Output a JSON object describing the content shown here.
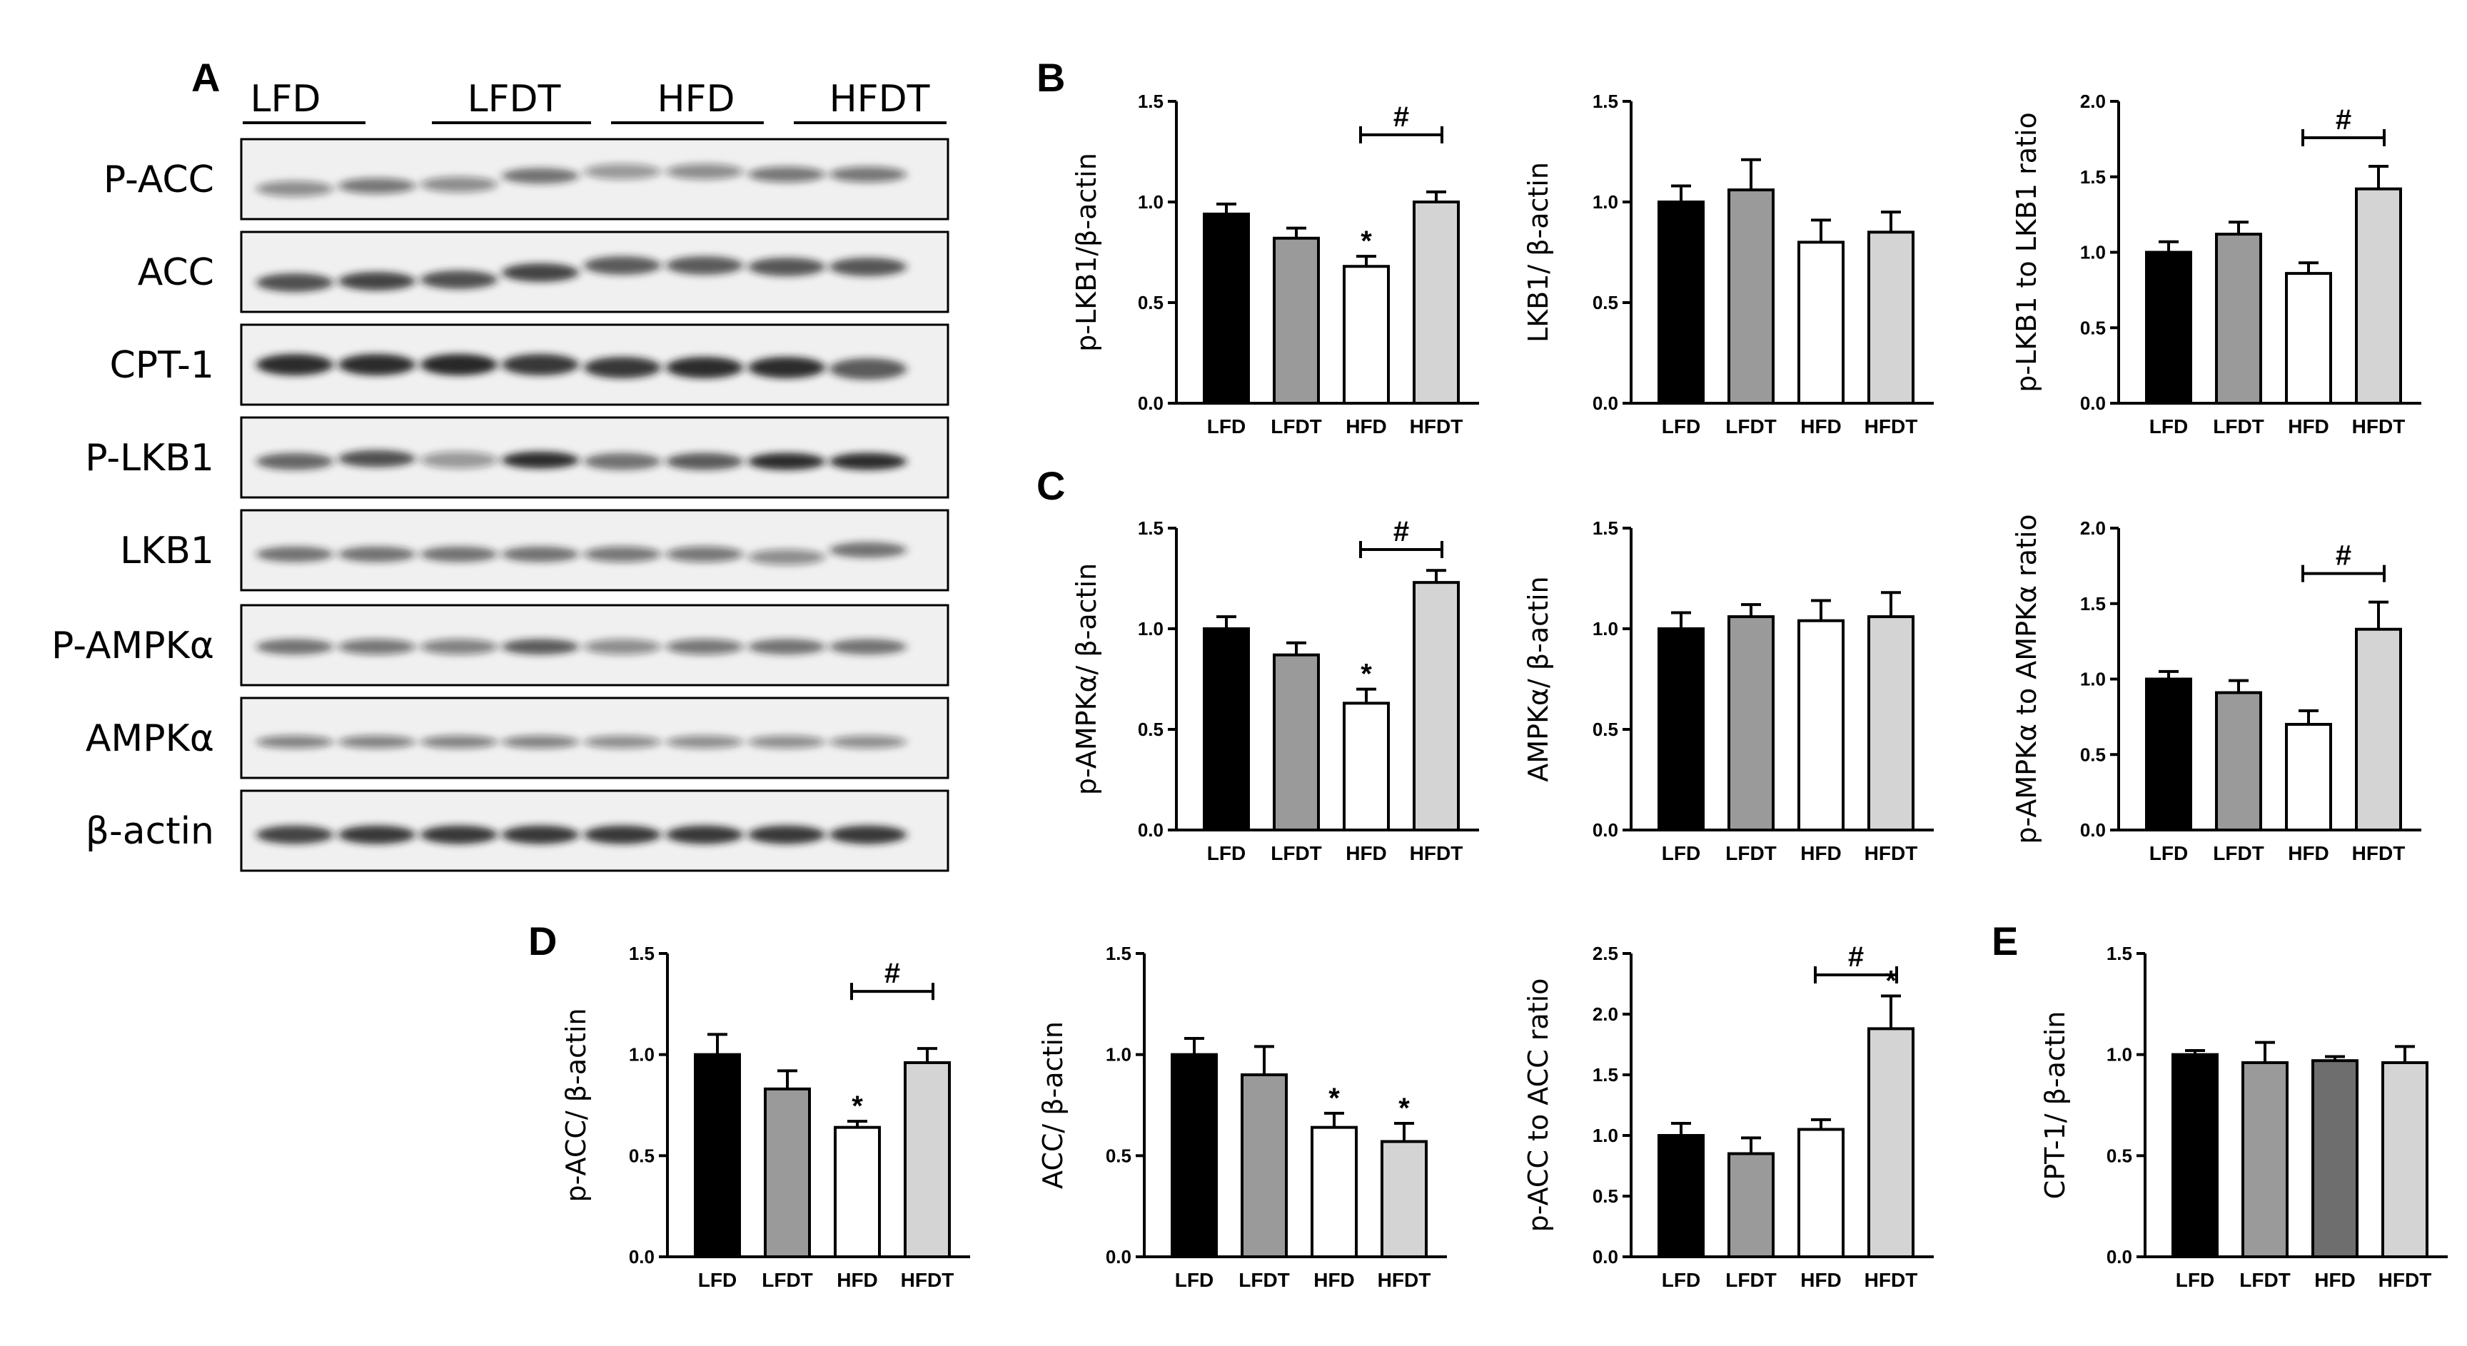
{
  "panel_letters": [
    "A",
    "B",
    "C",
    "D",
    "E"
  ],
  "blot": {
    "groups": [
      "LFD",
      "LFDT",
      "HFD",
      "HFDT"
    ],
    "rows": [
      "P-ACC",
      "ACC",
      "CPT-1",
      "P-LKB1",
      "LKB1",
      "P-AMPKα",
      "AMPKα",
      "β-actin"
    ]
  },
  "bar_colors": {
    "LFD": "#000000",
    "LFDT": "#9a9a9a",
    "HFD": "#ffffff",
    "HFDT": "#d4d4d4",
    "HFD_dark": "#6e6e6e"
  },
  "chart_data": [
    {
      "type": "bar",
      "panel": "B",
      "ylabel": "p-LKB1/β-actin",
      "categories": [
        "LFD",
        "LFDT",
        "HFD",
        "HFDT"
      ],
      "values": [
        0.94,
        0.82,
        0.68,
        1.0
      ],
      "errors": [
        0.05,
        0.05,
        0.05,
        0.05
      ],
      "ylim": [
        0,
        1.5
      ],
      "yticks": [
        "0.0",
        "0.5",
        "1.0",
        "1.5"
      ],
      "star": [
        "",
        "",
        "*",
        ""
      ],
      "hash": {
        "from": 2,
        "to": 3,
        "label": "#"
      }
    },
    {
      "type": "bar",
      "panel": "B",
      "ylabel": "LKB1/ β-actin",
      "categories": [
        "LFD",
        "LFDT",
        "HFD",
        "HFDT"
      ],
      "values": [
        1.0,
        1.06,
        0.8,
        0.85
      ],
      "errors": [
        0.08,
        0.15,
        0.11,
        0.1
      ],
      "ylim": [
        0,
        1.5
      ],
      "yticks": [
        "0.0",
        "0.5",
        "1.0",
        "1.5"
      ],
      "star": [
        "",
        "",
        "",
        ""
      ],
      "hash": null
    },
    {
      "type": "bar",
      "panel": "B",
      "ylabel": "p-LKB1 to LKB1 ratio",
      "categories": [
        "LFD",
        "LFDT",
        "HFD",
        "HFDT"
      ],
      "values": [
        1.0,
        1.12,
        0.86,
        1.42
      ],
      "errors": [
        0.07,
        0.08,
        0.07,
        0.15
      ],
      "ylim": [
        0,
        2.0
      ],
      "yticks": [
        "0.0",
        "0.5",
        "1.0",
        "1.5",
        "2.0"
      ],
      "star": [
        "",
        "",
        "",
        ""
      ],
      "hash": {
        "from": 2,
        "to": 3,
        "label": "#"
      }
    },
    {
      "type": "bar",
      "panel": "C",
      "ylabel": "p-AMPKα/ β-actin",
      "categories": [
        "LFD",
        "LFDT",
        "HFD",
        "HFDT"
      ],
      "values": [
        1.0,
        0.87,
        0.63,
        1.23
      ],
      "errors": [
        0.06,
        0.06,
        0.07,
        0.06
      ],
      "ylim": [
        0,
        1.5
      ],
      "yticks": [
        "0.0",
        "0.5",
        "1.0",
        "1.5"
      ],
      "star": [
        "",
        "",
        "*",
        ""
      ],
      "hash": {
        "from": 2,
        "to": 3,
        "label": "#"
      }
    },
    {
      "type": "bar",
      "panel": "C",
      "ylabel": "AMPKα/ β-actin",
      "categories": [
        "LFD",
        "LFDT",
        "HFD",
        "HFDT"
      ],
      "values": [
        1.0,
        1.06,
        1.04,
        1.06
      ],
      "errors": [
        0.08,
        0.06,
        0.1,
        0.12
      ],
      "ylim": [
        0,
        1.5
      ],
      "yticks": [
        "0.0",
        "0.5",
        "1.0",
        "1.5"
      ],
      "star": [
        "",
        "",
        "",
        ""
      ],
      "hash": null
    },
    {
      "type": "bar",
      "panel": "C",
      "ylabel": "p-AMPKα to AMPKα ratio",
      "categories": [
        "LFD",
        "LFDT",
        "HFD",
        "HFDT"
      ],
      "values": [
        1.0,
        0.91,
        0.7,
        1.33
      ],
      "errors": [
        0.05,
        0.08,
        0.09,
        0.18
      ],
      "ylim": [
        0,
        2.0
      ],
      "yticks": [
        "0.0",
        "0.5",
        "1.0",
        "1.5",
        "2.0"
      ],
      "star": [
        "",
        "",
        "",
        ""
      ],
      "hash": {
        "from": 2,
        "to": 3,
        "label": "#"
      }
    },
    {
      "type": "bar",
      "panel": "D",
      "ylabel": "p-ACC/ β-actin",
      "categories": [
        "LFD",
        "LFDT",
        "HFD",
        "HFDT"
      ],
      "values": [
        1.0,
        0.83,
        0.64,
        0.96
      ],
      "errors": [
        0.1,
        0.09,
        0.03,
        0.07
      ],
      "ylim": [
        0,
        1.5
      ],
      "yticks": [
        "0.0",
        "0.5",
        "1.0",
        "1.5"
      ],
      "star": [
        "",
        "",
        "*",
        ""
      ],
      "hash": {
        "from": 2,
        "to": 3,
        "label": "#"
      }
    },
    {
      "type": "bar",
      "panel": "D",
      "ylabel": "ACC/ β-actin",
      "categories": [
        "LFD",
        "LFDT",
        "HFD",
        "HFDT"
      ],
      "values": [
        1.0,
        0.9,
        0.64,
        0.57
      ],
      "errors": [
        0.08,
        0.14,
        0.07,
        0.09
      ],
      "ylim": [
        0,
        1.5
      ],
      "yticks": [
        "0.0",
        "0.5",
        "1.0",
        "1.5"
      ],
      "star": [
        "",
        "",
        "*",
        "*"
      ],
      "hash": null
    },
    {
      "type": "bar",
      "panel": "D",
      "ylabel": "p-ACC to ACC ratio",
      "categories": [
        "LFD",
        "LFDT",
        "HFD",
        "HFDT"
      ],
      "values": [
        1.0,
        0.85,
        1.05,
        1.88
      ],
      "errors": [
        0.1,
        0.13,
        0.08,
        0.27
      ],
      "ylim": [
        0,
        2.5
      ],
      "yticks": [
        "0.0",
        "0.5",
        "1.0",
        "1.5",
        "2.0",
        "2.5"
      ],
      "star": [
        "",
        "",
        "",
        "*"
      ],
      "hash": {
        "from": 2,
        "to": 3,
        "label": "#"
      }
    },
    {
      "type": "bar",
      "panel": "E",
      "ylabel": "CPT-1/ β-actin",
      "categories": [
        "LFD",
        "LFDT",
        "HFD",
        "HFDT"
      ],
      "values": [
        1.0,
        0.96,
        0.97,
        0.96
      ],
      "errors": [
        0.02,
        0.1,
        0.02,
        0.08
      ],
      "ylim": [
        0,
        1.5
      ],
      "yticks": [
        "0.0",
        "0.5",
        "1.0",
        "1.5"
      ],
      "star": [
        "",
        "",
        "",
        ""
      ],
      "hash": null,
      "hfd_dark": true
    }
  ]
}
